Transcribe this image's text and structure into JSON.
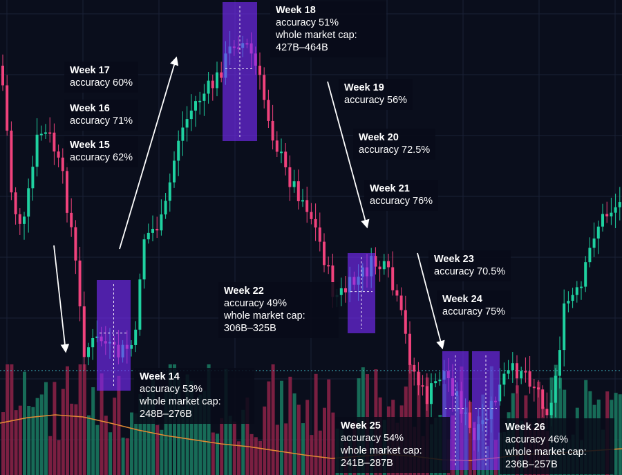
{
  "chart_data": {
    "type": "candlestick",
    "title": "",
    "grid": true,
    "reference_level_line": "horizontal dotted teal line",
    "colors": {
      "background": "#0a0e1c",
      "grid": "#1a2136",
      "up": "#1fd1a0",
      "down": "#f0427c",
      "highlight": "#7a2cff",
      "volume_up": "#1a7b62",
      "volume_down": "#8e2248",
      "moving_average": "#e38b34",
      "reference_line": "#3fb7c2",
      "arrow": "#ffffff"
    },
    "annotations": [
      {
        "week": "Week 14",
        "accuracy": "accuracy 53%",
        "market_cap_label": "whole market cap:",
        "market_cap": "248B–276B"
      },
      {
        "week": "Week 15",
        "accuracy": "accuracy 62%"
      },
      {
        "week": "Week 16",
        "accuracy": "accuracy 71%"
      },
      {
        "week": "Week 17",
        "accuracy": "accuracy 60%"
      },
      {
        "week": "Week 18",
        "accuracy": "accuracy 51%",
        "market_cap_label": "whole market cap:",
        "market_cap": "427B–464B"
      },
      {
        "week": "Week 19",
        "accuracy": "accuracy 56%"
      },
      {
        "week": "Week 20",
        "accuracy": "accuracy 72.5%"
      },
      {
        "week": "Week 21",
        "accuracy": "accuracy 76%"
      },
      {
        "week": "Week 22",
        "accuracy": "accuracy 49%",
        "market_cap_label": "whole market cap:",
        "market_cap": "306B–325B"
      },
      {
        "week": "Week 23",
        "accuracy": "accuracy 70.5%"
      },
      {
        "week": "Week 24",
        "accuracy": "accuracy 75%"
      },
      {
        "week": "Week 25",
        "accuracy": "accuracy 54%",
        "market_cap_label": "whole market cap:",
        "market_cap": "241B–287B"
      },
      {
        "week": "Week 26",
        "accuracy": "accuracy 46%",
        "market_cap_label": "whole market cap:",
        "market_cap": "236B–257B"
      }
    ],
    "highlighted_weeks": [
      "Week 14",
      "Week 18",
      "Week 22",
      "Week 25",
      "Week 26"
    ]
  }
}
